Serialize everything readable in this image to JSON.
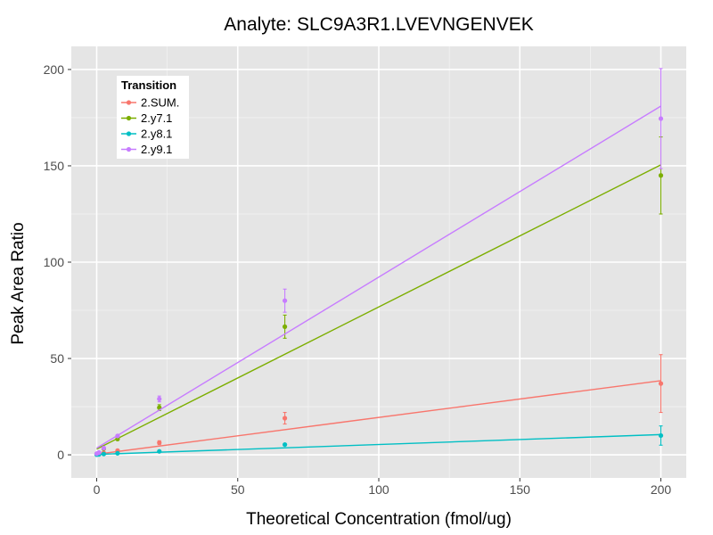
{
  "chart_data": {
    "type": "scatter",
    "title": "Analyte: SLC9A3R1.LVEVNGENVEK",
    "xlabel": "Theoretical Concentration (fmol/ug)",
    "ylabel": "Peak Area Ratio",
    "xlim": [
      -9,
      209
    ],
    "ylim": [
      -12,
      212
    ],
    "x_ticks": [
      0,
      50,
      100,
      150,
      200
    ],
    "y_ticks": [
      0,
      50,
      100,
      150,
      200
    ],
    "grid": true,
    "legend": {
      "title": "Transition",
      "position": "top-left"
    },
    "series": [
      {
        "name": "2.SUM.",
        "color": "#F8766D",
        "points": [
          {
            "x": 0,
            "y": 0.3
          },
          {
            "x": 0.8,
            "y": 0.5
          },
          {
            "x": 2.5,
            "y": 1.0
          },
          {
            "x": 7.4,
            "y": 2.2
          },
          {
            "x": 22.2,
            "y": 6.3
          },
          {
            "x": 66.7,
            "y": 19.0
          },
          {
            "x": 200,
            "y": 37.0
          }
        ],
        "error": [
          0,
          0,
          0.3,
          0.5,
          1.0,
          3.0,
          15.0
        ],
        "fit": [
          {
            "x": 0,
            "y": 0.3
          },
          {
            "x": 200,
            "y": 38.5
          }
        ]
      },
      {
        "name": "2.y7.1",
        "color": "#7CAE00",
        "points": [
          {
            "x": 0,
            "y": 0.5
          },
          {
            "x": 0.8,
            "y": 1.0
          },
          {
            "x": 2.5,
            "y": 3.2
          },
          {
            "x": 7.4,
            "y": 8.2
          },
          {
            "x": 22.2,
            "y": 24.5
          },
          {
            "x": 66.7,
            "y": 66.5
          },
          {
            "x": 200,
            "y": 145.0
          }
        ],
        "error": [
          0,
          0,
          0.3,
          0.5,
          1.5,
          6.0,
          20.0
        ],
        "fit": [
          {
            "x": 0,
            "y": 3.0
          },
          {
            "x": 200,
            "y": 150.5
          }
        ]
      },
      {
        "name": "2.y8.1",
        "color": "#00BFC4",
        "points": [
          {
            "x": 0,
            "y": 0.1
          },
          {
            "x": 0.8,
            "y": 0.2
          },
          {
            "x": 2.5,
            "y": 0.4
          },
          {
            "x": 7.4,
            "y": 0.8
          },
          {
            "x": 22.2,
            "y": 1.8
          },
          {
            "x": 66.7,
            "y": 5.3
          },
          {
            "x": 200,
            "y": 10.0
          }
        ],
        "error": [
          0,
          0,
          0,
          0.2,
          0.3,
          0.5,
          5.0
        ],
        "fit": [
          {
            "x": 0,
            "y": 0.2
          },
          {
            "x": 200,
            "y": 10.5
          }
        ]
      },
      {
        "name": "2.y9.1",
        "color": "#C77CFF",
        "points": [
          {
            "x": 0,
            "y": 0.6
          },
          {
            "x": 0.8,
            "y": 1.2
          },
          {
            "x": 2.5,
            "y": 3.5
          },
          {
            "x": 7.4,
            "y": 9.8
          },
          {
            "x": 22.2,
            "y": 29.0
          },
          {
            "x": 66.7,
            "y": 80.0
          },
          {
            "x": 200,
            "y": 174.5
          }
        ],
        "error": [
          0,
          0,
          0.3,
          0.6,
          1.5,
          6.0,
          26.0
        ],
        "fit": [
          {
            "x": 0,
            "y": 3.5
          },
          {
            "x": 200,
            "y": 181.0
          }
        ]
      }
    ]
  }
}
